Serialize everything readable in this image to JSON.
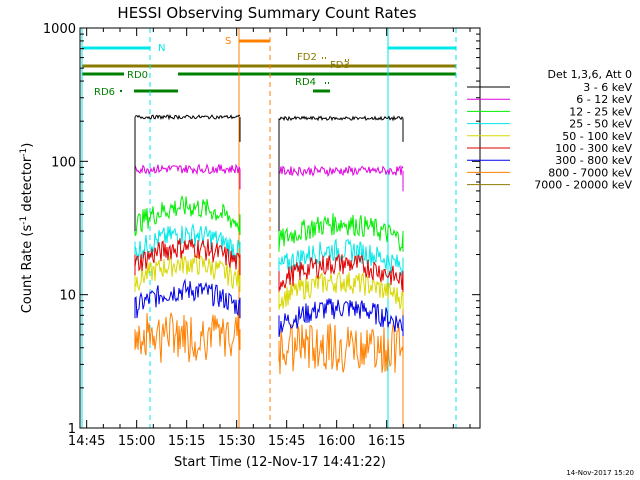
{
  "chart_data": {
    "type": "line",
    "title": "HESSI Observing Summary Count Rates",
    "xlabel": "Start Time (12-Nov-17 14:41:22)",
    "ylabel_main": "Count Rate (s",
    "ylabel_sup1": "-1",
    "ylabel_mid": " detector",
    "ylabel_sup2": "-1",
    "ylabel_end": ")",
    "y_scale": "log",
    "ylim": [
      1,
      1000
    ],
    "xlim_minutes": [
      -17,
      103
    ],
    "x_tick_labels": [
      "14:45",
      "15:00",
      "15:15",
      "15:30",
      "15:45",
      "16:00",
      "16:15"
    ],
    "y_tick_labels": [
      "1",
      "10",
      "100",
      "1000"
    ],
    "legend_title": "Det 1,3,6, Att 0",
    "legend_position": "right",
    "series": [
      {
        "name": "3 - 6 keV",
        "color": "#000000",
        "seg1": 215,
        "seg2": 210
      },
      {
        "name": "6 - 12 keV",
        "color": "#e000e0",
        "seg1": 88,
        "seg2": 85
      },
      {
        "name": "12 - 25 keV",
        "color": "#00ee00",
        "seg1": 40,
        "seg2": 30
      },
      {
        "name": "25 - 50 keV",
        "color": "#00e8e8",
        "seg1": 25,
        "seg2": 19
      },
      {
        "name": "50 - 100 keV",
        "color": "#d8d800",
        "seg1": 15,
        "seg2": 11
      },
      {
        "name": "100 - 300 keV",
        "color": "#e00000",
        "seg1": 20,
        "seg2": 15
      },
      {
        "name": "300 - 800 keV",
        "color": "#0000e8",
        "seg1": 9.5,
        "seg2": 7
      },
      {
        "name": "800 - 7000 keV",
        "color": "#ff8000",
        "seg1": 5.5,
        "seg2": 4.5
      },
      {
        "name": "7000 - 20000 keV",
        "color": "#8b7a00",
        "seg1": null,
        "seg2": null
      }
    ],
    "flags": {
      "N": {
        "label": "N",
        "color": "#00e8e8"
      },
      "S": {
        "label": "S",
        "color": "#ff8000"
      },
      "FD2": {
        "label": "FD2",
        "color": "#8b7a00"
      },
      "FD3": {
        "label": "FD3",
        "color": "#8b7a00"
      },
      "RD0": {
        "label": "RD0",
        "color": "#008000"
      },
      "RD4": {
        "label": "RD4",
        "color": "#008000"
      },
      "RD6": {
        "label": "RD6",
        "color": "#008000"
      }
    },
    "timestamp": "14-Nov-2017 15:20"
  }
}
